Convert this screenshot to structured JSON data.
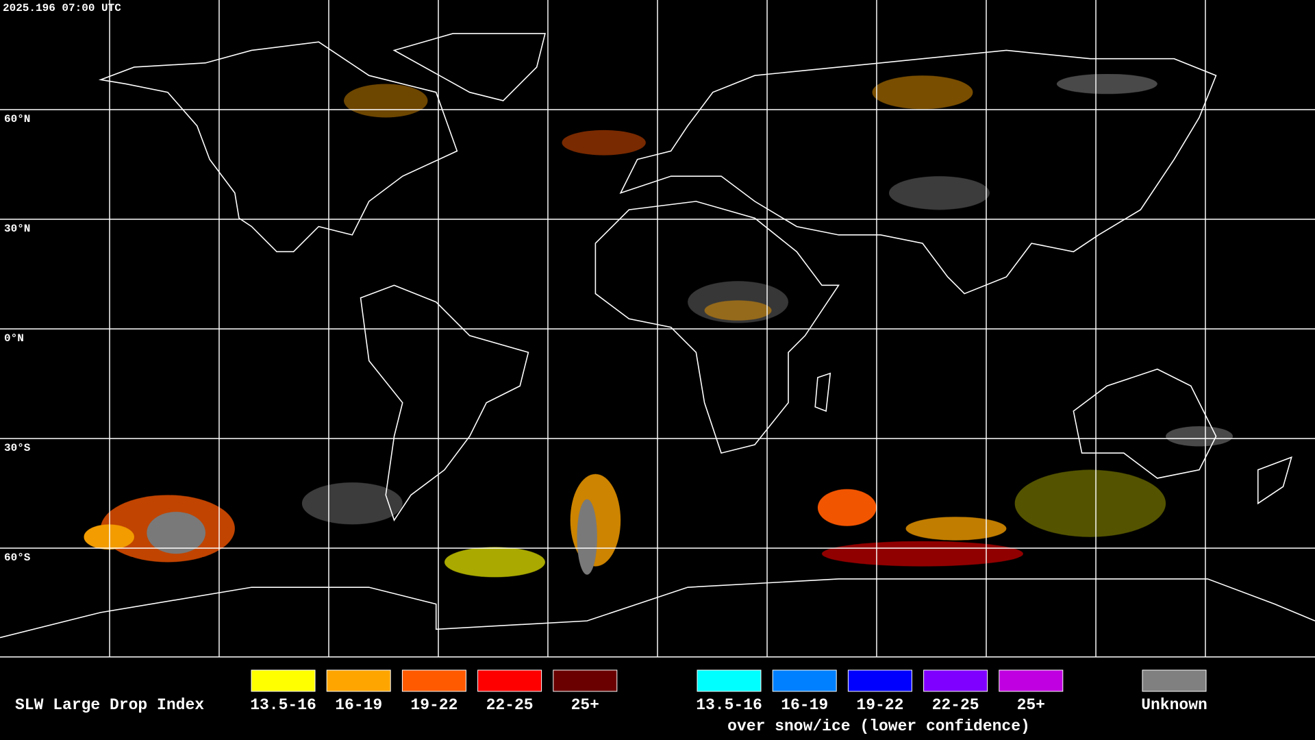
{
  "timestamp": "2025.196 07:00 UTC",
  "lat_labels": [
    "60°N",
    "30°N",
    "0°N",
    "30°S",
    "60°S"
  ],
  "legend": {
    "title": "SLW Large Drop Index",
    "items": [
      {
        "label": "13.5-16",
        "color": "#ffff00"
      },
      {
        "label": "16-19",
        "color": "#ffa500"
      },
      {
        "label": "19-22",
        "color": "#ff5a00"
      },
      {
        "label": "22-25",
        "color": "#ff0000"
      },
      {
        "label": "25+",
        "color": "#6b0000"
      }
    ],
    "snow_items": [
      {
        "label": "13.5-16",
        "color": "#00ffff"
      },
      {
        "label": "16-19",
        "color": "#0080ff"
      },
      {
        "label": "19-22",
        "color": "#0000ff"
      },
      {
        "label": "22-25",
        "color": "#8000ff"
      },
      {
        "label": "25+",
        "color": "#c000e0"
      }
    ],
    "snow_caption": "over snow/ice (lower confidence)",
    "unknown": {
      "label": "Unknown",
      "color": "#808080"
    }
  }
}
